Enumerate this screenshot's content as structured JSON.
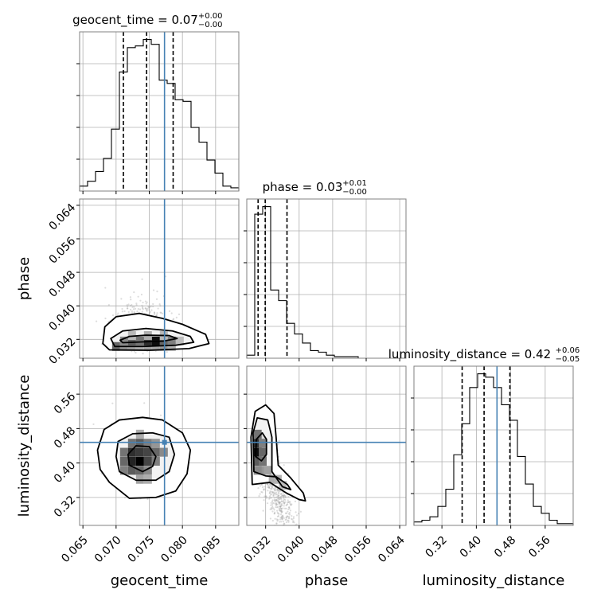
{
  "chart_data": {
    "type": "corner",
    "parameters": [
      {
        "name": "geocent_time",
        "xlabel": "geocent_time",
        "title": "geocent_time = 0.07",
        "title_plus": "+0.00",
        "title_minus": "−0.00",
        "range": [
          0.0645,
          0.0885
        ],
        "ticks": [
          0.065,
          0.07,
          0.075,
          0.08,
          0.085
        ],
        "tick_labels": [
          "0.065",
          "0.070",
          "0.075",
          "0.080",
          "0.085"
        ],
        "truth": 0.0773,
        "quantiles": [
          0.0711,
          0.0746,
          0.0786
        ],
        "hist_bins": [
          0.0645,
          0.0657,
          0.0669,
          0.0681,
          0.0693,
          0.0705,
          0.0717,
          0.0729,
          0.0741,
          0.0753,
          0.0765,
          0.0777,
          0.0789,
          0.0801,
          0.0813,
          0.0825,
          0.0837,
          0.0849,
          0.0861,
          0.0873,
          0.0885
        ],
        "hist_counts": [
          3,
          6,
          12,
          20,
          38,
          73,
          88,
          89,
          93,
          90,
          68,
          66,
          56,
          55,
          39,
          30,
          19,
          11,
          3,
          2
        ]
      },
      {
        "name": "phase",
        "xlabel": "phase",
        "ylabel": "phase",
        "title": "phase = 0.03",
        "title_plus": "+0.01",
        "title_minus": "−0.00",
        "range": [
          0.0275,
          0.0655
        ],
        "ticks": [
          0.032,
          0.04,
          0.048,
          0.056,
          0.064
        ],
        "tick_labels": [
          "0.032",
          "0.040",
          "0.048",
          "0.056",
          "0.064"
        ],
        "truth": null,
        "quantiles": [
          0.0302,
          0.0319,
          0.0371
        ],
        "hist_bins": [
          0.0275,
          0.0294,
          0.0313,
          0.0332,
          0.0351,
          0.037,
          0.0389,
          0.0408,
          0.0427,
          0.0446,
          0.0465,
          0.0484,
          0.0503,
          0.0522,
          0.0541,
          0.056,
          0.0579,
          0.0598,
          0.0617,
          0.0636,
          0.0655
        ],
        "hist_counts": [
          2,
          95,
          100,
          45,
          38,
          23,
          16,
          10,
          5,
          4,
          2,
          1,
          1,
          1,
          0,
          0,
          0,
          0,
          0,
          0
        ]
      },
      {
        "name": "luminosity_distance",
        "xlabel": "luminosity_distance",
        "ylabel": "luminosity_distance",
        "title": "luminosity_distance = 0.42",
        "title_plus": "+0.06",
        "title_minus": "−0.05",
        "range": [
          0.255,
          0.625
        ],
        "ticks": [
          0.32,
          0.4,
          0.48,
          0.56
        ],
        "tick_labels": [
          "0.32",
          "0.40",
          "0.48",
          "0.56"
        ],
        "truth": 0.448,
        "quantiles": [
          0.367,
          0.418,
          0.478
        ],
        "hist_bins": [
          0.255,
          0.2735,
          0.292,
          0.3105,
          0.329,
          0.3475,
          0.366,
          0.3845,
          0.403,
          0.4215,
          0.44,
          0.4585,
          0.477,
          0.4955,
          0.514,
          0.5325,
          0.551,
          0.5695,
          0.588,
          0.6065,
          0.625
        ],
        "hist_counts": [
          2,
          3,
          5,
          11,
          21,
          41,
          59,
          80,
          88,
          86,
          80,
          70,
          61,
          40,
          24,
          11,
          7,
          3,
          1,
          1
        ]
      }
    ],
    "grid": true,
    "truth_color": "#4682b4",
    "hist_color": "#000000",
    "density_color": "#000000",
    "scatter_color": "#9e9e9e",
    "joint": [
      {
        "x": "geocent_time",
        "y": "phase",
        "center": [
          0.0738,
          0.0322
        ],
        "contours": [
          {
            "level": 0.118,
            "points": [
              [
                0.071,
                0.0312
              ],
              [
                0.074,
                0.0314
              ],
              [
                0.0772,
                0.0316
              ],
              [
                0.0792,
                0.0322
              ],
              [
                0.078,
                0.0329
              ],
              [
                0.0745,
                0.033
              ],
              [
                0.072,
                0.0327
              ],
              [
                0.0706,
                0.0318
              ]
            ]
          },
          {
            "level": 0.393,
            "points": [
              [
                0.0698,
                0.0303
              ],
              [
                0.074,
                0.0303
              ],
              [
                0.079,
                0.0306
              ],
              [
                0.0817,
                0.0313
              ],
              [
                0.0812,
                0.0327
              ],
              [
                0.0785,
                0.034
              ],
              [
                0.0745,
                0.0346
              ],
              [
                0.071,
                0.034
              ],
              [
                0.0692,
                0.0322
              ]
            ]
          },
          {
            "level": 0.675,
            "points": [
              [
                0.069,
                0.0295
              ],
              [
                0.075,
                0.0294
              ],
              [
                0.081,
                0.0298
              ],
              [
                0.084,
                0.031
              ],
              [
                0.0835,
                0.0332
              ],
              [
                0.08,
                0.0356
              ],
              [
                0.077,
                0.037
              ],
              [
                0.0735,
                0.0382
              ],
              [
                0.07,
                0.0374
              ],
              [
                0.0683,
                0.035
              ],
              [
                0.068,
                0.031
              ]
            ]
          }
        ],
        "cells": [
          {
            "x": 0.07,
            "y": 0.0303,
            "v": 0.55
          },
          {
            "x": 0.0712,
            "y": 0.0303,
            "v": 0.35
          },
          {
            "x": 0.0724,
            "y": 0.0303,
            "v": 0.3
          },
          {
            "x": 0.0736,
            "y": 0.0303,
            "v": 0.25
          },
          {
            "x": 0.0748,
            "y": 0.0303,
            "v": 0.3
          },
          {
            "x": 0.076,
            "y": 0.0303,
            "v": 0.28
          },
          {
            "x": 0.0772,
            "y": 0.0303,
            "v": 0.32
          },
          {
            "x": 0.0784,
            "y": 0.0303,
            "v": 0.22
          },
          {
            "x": 0.0712,
            "y": 0.0316,
            "v": 0.4
          },
          {
            "x": 0.0724,
            "y": 0.0316,
            "v": 0.6
          },
          {
            "x": 0.0736,
            "y": 0.0316,
            "v": 0.5
          },
          {
            "x": 0.0748,
            "y": 0.0316,
            "v": 0.8
          },
          {
            "x": 0.076,
            "y": 0.0316,
            "v": 0.95
          },
          {
            "x": 0.0772,
            "y": 0.0316,
            "v": 0.55
          },
          {
            "x": 0.0784,
            "y": 0.0316,
            "v": 0.45
          },
          {
            "x": 0.0796,
            "y": 0.0316,
            "v": 0.18
          },
          {
            "x": 0.0724,
            "y": 0.0329,
            "v": 0.2
          },
          {
            "x": 0.0748,
            "y": 0.0329,
            "v": 0.25
          },
          {
            "x": 0.0772,
            "y": 0.0329,
            "v": 0.2
          }
        ]
      },
      {
        "x": "geocent_time",
        "y": "luminosity_distance",
        "center": [
          0.0735,
          0.42
        ],
        "contours": [
          {
            "level": 0.118,
            "points": [
              [
                0.072,
                0.395
              ],
              [
                0.074,
                0.38
              ],
              [
                0.0755,
                0.392
              ],
              [
                0.076,
                0.415
              ],
              [
                0.075,
                0.438
              ],
              [
                0.073,
                0.44
              ],
              [
                0.0718,
                0.42
              ]
            ]
          },
          {
            "level": 0.393,
            "points": [
              [
                0.0705,
                0.38
              ],
              [
                0.073,
                0.36
              ],
              [
                0.076,
                0.36
              ],
              [
                0.078,
                0.38
              ],
              [
                0.0788,
                0.42
              ],
              [
                0.078,
                0.46
              ],
              [
                0.0755,
                0.47
              ],
              [
                0.0725,
                0.468
              ],
              [
                0.0703,
                0.45
              ],
              [
                0.07,
                0.415
              ]
            ]
          },
          {
            "level": 0.675,
            "points": [
              [
                0.069,
                0.355
              ],
              [
                0.072,
                0.318
              ],
              [
                0.076,
                0.32
              ],
              [
                0.079,
                0.335
              ],
              [
                0.0807,
                0.375
              ],
              [
                0.0812,
                0.43
              ],
              [
                0.08,
                0.47
              ],
              [
                0.077,
                0.5
              ],
              [
                0.074,
                0.506
              ],
              [
                0.0705,
                0.5
              ],
              [
                0.0682,
                0.478
              ],
              [
                0.0672,
                0.43
              ],
              [
                0.0676,
                0.385
              ]
            ]
          }
        ],
        "cells": [
          {
            "x": 0.0712,
            "y": 0.383,
            "v": 0.45
          },
          {
            "x": 0.0724,
            "y": 0.383,
            "v": 0.6
          },
          {
            "x": 0.0736,
            "y": 0.383,
            "v": 0.55
          },
          {
            "x": 0.0748,
            "y": 0.383,
            "v": 0.4
          },
          {
            "x": 0.0712,
            "y": 0.404,
            "v": 0.55
          },
          {
            "x": 0.0724,
            "y": 0.404,
            "v": 0.85
          },
          {
            "x": 0.0736,
            "y": 0.404,
            "v": 1.0
          },
          {
            "x": 0.0748,
            "y": 0.404,
            "v": 0.7
          },
          {
            "x": 0.076,
            "y": 0.404,
            "v": 0.45
          },
          {
            "x": 0.0712,
            "y": 0.425,
            "v": 0.5
          },
          {
            "x": 0.0724,
            "y": 0.425,
            "v": 0.8
          },
          {
            "x": 0.0736,
            "y": 0.425,
            "v": 0.75
          },
          {
            "x": 0.0748,
            "y": 0.425,
            "v": 0.7
          },
          {
            "x": 0.076,
            "y": 0.425,
            "v": 0.55
          },
          {
            "x": 0.0772,
            "y": 0.425,
            "v": 0.4
          },
          {
            "x": 0.0724,
            "y": 0.446,
            "v": 0.5
          },
          {
            "x": 0.0736,
            "y": 0.446,
            "v": 0.6
          },
          {
            "x": 0.0748,
            "y": 0.446,
            "v": 0.45
          },
          {
            "x": 0.076,
            "y": 0.446,
            "v": 0.35
          },
          {
            "x": 0.0736,
            "y": 0.362,
            "v": 0.3
          },
          {
            "x": 0.0748,
            "y": 0.362,
            "v": 0.25
          },
          {
            "x": 0.0736,
            "y": 0.467,
            "v": 0.25
          }
        ]
      },
      {
        "x": "phase",
        "y": "luminosity_distance",
        "center": [
          0.031,
          0.43
        ],
        "contours": [
          {
            "level": 0.118,
            "points": [
              [
                0.0296,
                0.415
              ],
              [
                0.031,
                0.405
              ],
              [
                0.0322,
                0.42
              ],
              [
                0.0322,
                0.455
              ],
              [
                0.0312,
                0.47
              ],
              [
                0.0298,
                0.455
              ]
            ]
          },
          {
            "level": 0.393,
            "points": [
              [
                0.0292,
                0.38
              ],
              [
                0.032,
                0.37
              ],
              [
                0.0345,
                0.368
              ],
              [
                0.0372,
                0.35
              ],
              [
                0.038,
                0.338
              ],
              [
                0.036,
                0.345
              ],
              [
                0.0335,
                0.38
              ],
              [
                0.0335,
                0.46
              ],
              [
                0.0325,
                0.5
              ],
              [
                0.03,
                0.505
              ],
              [
                0.029,
                0.47
              ]
            ]
          },
          {
            "level": 0.675,
            "points": [
              [
                0.0288,
                0.35
              ],
              [
                0.033,
                0.355
              ],
              [
                0.037,
                0.33
              ],
              [
                0.04,
                0.315
              ],
              [
                0.0415,
                0.312
              ],
              [
                0.041,
                0.33
              ],
              [
                0.038,
                0.365
              ],
              [
                0.035,
                0.395
              ],
              [
                0.0345,
                0.46
              ],
              [
                0.034,
                0.515
              ],
              [
                0.032,
                0.535
              ],
              [
                0.0295,
                0.52
              ],
              [
                0.0285,
                0.46
              ]
            ]
          }
        ],
        "cells": [
          {
            "x": 0.0301,
            "y": 0.425,
            "v": 0.95
          },
          {
            "x": 0.0301,
            "y": 0.446,
            "v": 0.8
          },
          {
            "x": 0.0301,
            "y": 0.404,
            "v": 0.6
          },
          {
            "x": 0.0301,
            "y": 0.467,
            "v": 0.5
          },
          {
            "x": 0.0313,
            "y": 0.425,
            "v": 0.55
          },
          {
            "x": 0.0313,
            "y": 0.404,
            "v": 0.5
          },
          {
            "x": 0.0313,
            "y": 0.446,
            "v": 0.45
          },
          {
            "x": 0.0313,
            "y": 0.383,
            "v": 0.35
          },
          {
            "x": 0.0325,
            "y": 0.383,
            "v": 0.3
          },
          {
            "x": 0.0337,
            "y": 0.362,
            "v": 0.25
          },
          {
            "x": 0.0349,
            "y": 0.362,
            "v": 0.22
          },
          {
            "x": 0.0361,
            "y": 0.348,
            "v": 0.18
          },
          {
            "x": 0.0301,
            "y": 0.383,
            "v": 0.4
          }
        ]
      }
    ]
  }
}
